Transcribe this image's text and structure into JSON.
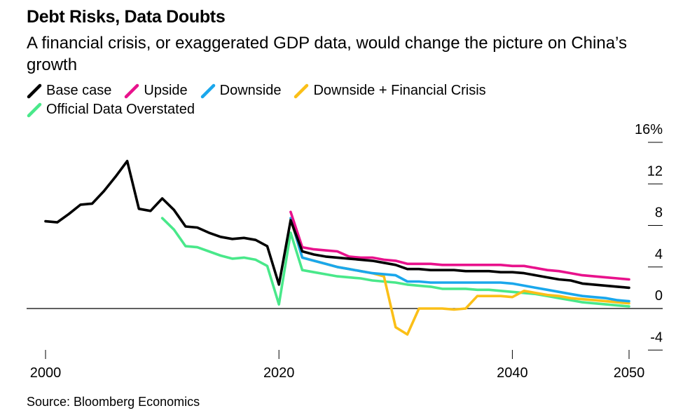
{
  "title": "Debt Risks, Data Doubts",
  "subtitle": "A financial crisis, or exaggerated GDP data, would change the picture on China’s growth",
  "source": "Source: Bloomberg Economics",
  "chart_data": {
    "type": "line",
    "xlim": [
      2000,
      2050
    ],
    "ylim": [
      -4,
      16
    ],
    "x_ticks": [
      "2000",
      "2020",
      "2040",
      "2050"
    ],
    "y_ticks": [
      "16%",
      "12",
      "8",
      "4",
      "0",
      "-4"
    ],
    "y_tick_values": [
      16,
      12,
      8,
      4,
      0,
      -4
    ],
    "x_tick_values": [
      2000,
      2020,
      2040,
      2050
    ],
    "legend_position": "top-left",
    "grid": false,
    "series": [
      {
        "name": "Base case",
        "color": "#000000",
        "points": [
          [
            2000,
            8.4
          ],
          [
            2001,
            8.3
          ],
          [
            2002,
            9.1
          ],
          [
            2003,
            10.0
          ],
          [
            2004,
            10.1
          ],
          [
            2005,
            11.3
          ],
          [
            2006,
            12.7
          ],
          [
            2007,
            14.2
          ],
          [
            2008,
            9.6
          ],
          [
            2009,
            9.4
          ],
          [
            2010,
            10.6
          ],
          [
            2011,
            9.5
          ],
          [
            2012,
            7.9
          ],
          [
            2013,
            7.8
          ],
          [
            2014,
            7.3
          ],
          [
            2015,
            6.9
          ],
          [
            2016,
            6.7
          ],
          [
            2017,
            6.8
          ],
          [
            2018,
            6.6
          ],
          [
            2019,
            6.0
          ],
          [
            2020,
            2.3
          ],
          [
            2021,
            8.5
          ],
          [
            2022,
            5.5
          ],
          [
            2023,
            5.2
          ],
          [
            2024,
            5.0
          ],
          [
            2025,
            4.9
          ],
          [
            2026,
            4.8
          ],
          [
            2027,
            4.7
          ],
          [
            2028,
            4.6
          ],
          [
            2029,
            4.4
          ],
          [
            2030,
            4.2
          ],
          [
            2031,
            3.8
          ],
          [
            2032,
            3.8
          ],
          [
            2033,
            3.7
          ],
          [
            2034,
            3.7
          ],
          [
            2035,
            3.7
          ],
          [
            2036,
            3.6
          ],
          [
            2037,
            3.6
          ],
          [
            2038,
            3.6
          ],
          [
            2039,
            3.5
          ],
          [
            2040,
            3.5
          ],
          [
            2041,
            3.4
          ],
          [
            2042,
            3.2
          ],
          [
            2043,
            3.0
          ],
          [
            2044,
            2.8
          ],
          [
            2045,
            2.7
          ],
          [
            2046,
            2.4
          ],
          [
            2047,
            2.3
          ],
          [
            2048,
            2.2
          ],
          [
            2049,
            2.1
          ],
          [
            2050,
            2.0
          ]
        ]
      },
      {
        "name": "Upside",
        "color": "#e8128c",
        "points": [
          [
            2021,
            9.3
          ],
          [
            2022,
            5.9
          ],
          [
            2023,
            5.7
          ],
          [
            2024,
            5.6
          ],
          [
            2025,
            5.5
          ],
          [
            2026,
            5.0
          ],
          [
            2027,
            4.9
          ],
          [
            2028,
            4.9
          ],
          [
            2029,
            4.7
          ],
          [
            2030,
            4.6
          ],
          [
            2031,
            4.3
          ],
          [
            2032,
            4.3
          ],
          [
            2033,
            4.3
          ],
          [
            2034,
            4.2
          ],
          [
            2035,
            4.2
          ],
          [
            2036,
            4.2
          ],
          [
            2037,
            4.2
          ],
          [
            2038,
            4.2
          ],
          [
            2039,
            4.2
          ],
          [
            2040,
            4.1
          ],
          [
            2041,
            4.1
          ],
          [
            2042,
            3.9
          ],
          [
            2043,
            3.7
          ],
          [
            2044,
            3.6
          ],
          [
            2045,
            3.4
          ],
          [
            2046,
            3.2
          ],
          [
            2047,
            3.1
          ],
          [
            2048,
            3.0
          ],
          [
            2049,
            2.9
          ],
          [
            2050,
            2.8
          ]
        ]
      },
      {
        "name": "Downside",
        "color": "#1aa7ec",
        "points": [
          [
            2021,
            8.7
          ],
          [
            2022,
            4.9
          ],
          [
            2023,
            4.6
          ],
          [
            2024,
            4.3
          ],
          [
            2025,
            4.0
          ],
          [
            2026,
            3.8
          ],
          [
            2027,
            3.6
          ],
          [
            2028,
            3.4
          ],
          [
            2029,
            3.3
          ],
          [
            2030,
            3.2
          ],
          [
            2031,
            2.6
          ],
          [
            2032,
            2.6
          ],
          [
            2033,
            2.5
          ],
          [
            2034,
            2.5
          ],
          [
            2035,
            2.5
          ],
          [
            2036,
            2.5
          ],
          [
            2037,
            2.5
          ],
          [
            2038,
            2.5
          ],
          [
            2039,
            2.5
          ],
          [
            2040,
            2.4
          ],
          [
            2041,
            2.2
          ],
          [
            2042,
            2.0
          ],
          [
            2043,
            1.8
          ],
          [
            2044,
            1.6
          ],
          [
            2045,
            1.4
          ],
          [
            2046,
            1.2
          ],
          [
            2047,
            1.1
          ],
          [
            2048,
            1.0
          ],
          [
            2049,
            0.8
          ],
          [
            2050,
            0.7
          ]
        ]
      },
      {
        "name": "Downside + Financial Crisis",
        "color": "#fbbf17",
        "points": [
          [
            2021,
            8.6
          ],
          [
            2022,
            4.9
          ],
          [
            2023,
            4.6
          ],
          [
            2024,
            4.3
          ],
          [
            2025,
            4.0
          ],
          [
            2026,
            3.8
          ],
          [
            2027,
            3.6
          ],
          [
            2028,
            3.4
          ],
          [
            2029,
            3.1
          ],
          [
            2030,
            -1.8
          ],
          [
            2031,
            -2.5
          ],
          [
            2032,
            0.0
          ],
          [
            2033,
            0.0
          ],
          [
            2034,
            0.0
          ],
          [
            2035,
            -0.1
          ],
          [
            2036,
            0.0
          ],
          [
            2037,
            1.2
          ],
          [
            2038,
            1.2
          ],
          [
            2039,
            1.2
          ],
          [
            2040,
            1.1
          ],
          [
            2041,
            1.7
          ],
          [
            2042,
            1.5
          ],
          [
            2043,
            1.3
          ],
          [
            2044,
            1.2
          ],
          [
            2045,
            1.0
          ],
          [
            2046,
            0.9
          ],
          [
            2047,
            0.8
          ],
          [
            2048,
            0.7
          ],
          [
            2049,
            0.6
          ],
          [
            2050,
            0.5
          ]
        ]
      },
      {
        "name": "Official Data Overstated",
        "color": "#49e88a",
        "points": [
          [
            2010,
            8.7
          ],
          [
            2011,
            7.6
          ],
          [
            2012,
            6.0
          ],
          [
            2013,
            5.9
          ],
          [
            2014,
            5.5
          ],
          [
            2015,
            5.1
          ],
          [
            2016,
            4.8
          ],
          [
            2017,
            4.9
          ],
          [
            2018,
            4.7
          ],
          [
            2019,
            4.1
          ],
          [
            2020,
            0.4
          ],
          [
            2021,
            7.3
          ],
          [
            2022,
            3.7
          ],
          [
            2023,
            3.5
          ],
          [
            2024,
            3.3
          ],
          [
            2025,
            3.1
          ],
          [
            2026,
            3.0
          ],
          [
            2027,
            2.9
          ],
          [
            2028,
            2.7
          ],
          [
            2029,
            2.6
          ],
          [
            2030,
            2.5
          ],
          [
            2031,
            2.3
          ],
          [
            2032,
            2.2
          ],
          [
            2033,
            2.1
          ],
          [
            2034,
            1.9
          ],
          [
            2035,
            1.9
          ],
          [
            2036,
            1.9
          ],
          [
            2037,
            1.8
          ],
          [
            2038,
            1.8
          ],
          [
            2039,
            1.7
          ],
          [
            2040,
            1.6
          ],
          [
            2041,
            1.5
          ],
          [
            2042,
            1.4
          ],
          [
            2043,
            1.2
          ],
          [
            2044,
            1.0
          ],
          [
            2045,
            0.8
          ],
          [
            2046,
            0.6
          ],
          [
            2047,
            0.5
          ],
          [
            2048,
            0.4
          ],
          [
            2049,
            0.3
          ],
          [
            2050,
            0.2
          ]
        ]
      }
    ]
  }
}
